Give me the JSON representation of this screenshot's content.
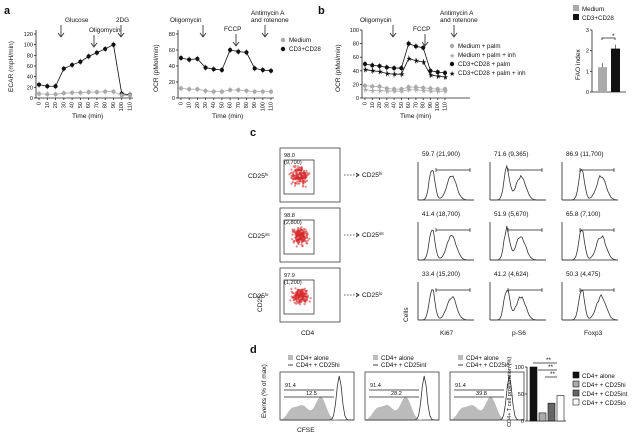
{
  "panels": {
    "a": "a",
    "b": "b",
    "c": "c",
    "d": "d"
  },
  "a_ecar": {
    "ylabel": "ECAR (mpH/min)",
    "xlabel": "Time (min)",
    "yticks": [
      "0",
      "20",
      "40",
      "60",
      "80",
      "100",
      "120"
    ],
    "xticks": [
      "0",
      "10",
      "20",
      "30",
      "40",
      "50",
      "60",
      "70",
      "80",
      "90",
      "100",
      "110"
    ],
    "annotations": [
      "Glucose",
      "Oligomycin",
      "2DG"
    ]
  },
  "a_ocr": {
    "ylabel": "OCR (pMol/min)",
    "xlabel": "Time (min)",
    "yticks": [
      "0",
      "20",
      "40",
      "60",
      "80"
    ],
    "xticks": [
      "0",
      "10",
      "20",
      "30",
      "40",
      "50",
      "60",
      "70",
      "80",
      "90",
      "100",
      "110"
    ],
    "annotations": [
      "Oligomycin",
      "FCCP",
      "Antimycin A",
      "and rotenone"
    ],
    "legend": [
      "Medium",
      "CD3+CD28"
    ]
  },
  "b_ocr": {
    "ylabel": "OCR (pMol/min)",
    "xlabel": "Time (min)",
    "yticks": [
      "0",
      "20",
      "40",
      "60",
      "80",
      "100"
    ],
    "xticks": [
      "0",
      "10",
      "20",
      "30",
      "40",
      "50",
      "60",
      "70",
      "80",
      "90",
      "100",
      "110"
    ],
    "annotations": [
      "Oligomycin",
      "FCCP",
      "Antimycin A",
      "and rotenone"
    ],
    "legend": [
      "Medium + palm",
      "Medium + palm + inh",
      "CD3+CD28 + palm",
      "CD3+CD28 + palm + inh"
    ]
  },
  "b_fao": {
    "ylabel": "FAO index",
    "yticks": [
      "0",
      "1",
      "2",
      "3"
    ],
    "legend": [
      "Medium",
      "CD3+CD28"
    ],
    "sig": "*"
  },
  "c": {
    "row_labels": [
      "CD25hi",
      "CD25int",
      "CD25lo"
    ],
    "row_sup": [
      "hi",
      "int",
      "lo"
    ],
    "scatter_vals": [
      [
        "98.0",
        "(9,700)"
      ],
      [
        "98.8",
        "(2,800)"
      ],
      [
        "97.9",
        "(1,200)"
      ]
    ],
    "xlabel_scatter": "CD4",
    "ylabel_scatter": "CD25",
    "hist_vals": [
      [
        "59.7 (21,900)",
        "71.6 (9,365)",
        "86.9 (11,700)"
      ],
      [
        "41.4 (18,700)",
        "51.9 (5,670)",
        "65.8 (7,100)"
      ],
      [
        "33.4 (15,200)",
        "41.2 (4,624)",
        "50.3 (4,475)"
      ]
    ],
    "hist_xlabels": [
      "Ki67",
      "p-S6",
      "Foxp3"
    ],
    "hist_ylabel": "Cells"
  },
  "d": {
    "ylabel": "Events (% of max)",
    "xlabel": "CFSE",
    "legends": [
      [
        "CD4+ alone",
        "CD4+ + CD25hi"
      ],
      [
        "CD4+ alone",
        "CD4+ + CD25int"
      ],
      [
        "CD4+ alone",
        "CD4+ + CD25lo"
      ]
    ],
    "left_vals": [
      "91.4",
      "91.4",
      "91.4"
    ],
    "right_vals": [
      "12.5",
      "28.2",
      "39.8"
    ],
    "bar_ylabel": "CD4+ T cell proliferation (%)",
    "bar_yticks": [
      "0",
      "50",
      "100"
    ],
    "bar_legend": [
      "CD4+ alone",
      "CD4+ + CD25hi",
      "CD4+ + CD25int",
      "CD4+ + CD25lo"
    ],
    "sig": [
      "**",
      "**",
      "**"
    ]
  },
  "chart_data": [
    {
      "type": "line",
      "title": "",
      "xlabel": "Time (min)",
      "ylabel": "ECAR (mpH/min)",
      "ylim": [
        0,
        120
      ],
      "x": [
        0,
        10,
        20,
        30,
        40,
        50,
        60,
        70,
        80,
        90,
        100,
        110
      ],
      "series": [
        {
          "values": [
            25,
            22,
            22,
            55,
            62,
            68,
            78,
            85,
            92,
            100,
            8,
            6
          ]
        },
        {
          "values": [
            8,
            7,
            7,
            9,
            10,
            10,
            11,
            11,
            12,
            12,
            5,
            5
          ]
        }
      ]
    },
    {
      "type": "line",
      "title": "",
      "xlabel": "Time (min)",
      "ylabel": "OCR (pMol/min)",
      "ylim": [
        0,
        80
      ],
      "x": [
        0,
        10,
        20,
        30,
        40,
        50,
        60,
        70,
        80,
        90,
        100,
        110
      ],
      "series": [
        {
          "name": "Medium",
          "values": [
            12,
            11,
            11,
            9,
            8,
            8,
            10,
            10,
            9,
            8,
            8,
            8
          ]
        },
        {
          "name": "CD3+CD28",
          "values": [
            50,
            48,
            49,
            38,
            36,
            35,
            60,
            58,
            57,
            37,
            35,
            34
          ]
        }
      ]
    },
    {
      "type": "line",
      "title": "",
      "xlabel": "Time (min)",
      "ylabel": "OCR (pMol/min)",
      "ylim": [
        0,
        100
      ],
      "x": [
        0,
        10,
        20,
        30,
        40,
        50,
        60,
        70,
        80,
        90,
        100,
        110
      ],
      "series": [
        {
          "name": "Medium + palm",
          "values": [
            18,
            17,
            17,
            14,
            13,
            13,
            16,
            16,
            15,
            14,
            13,
            13
          ]
        },
        {
          "name": "Medium + palm + inh",
          "values": [
            12,
            11,
            11,
            10,
            10,
            10,
            12,
            12,
            11,
            10,
            10,
            10
          ]
        },
        {
          "name": "CD3+CD28 + palm",
          "values": [
            50,
            48,
            47,
            45,
            44,
            44,
            80,
            76,
            74,
            40,
            38,
            37
          ]
        },
        {
          "name": "CD3+CD28 + palm + inh",
          "values": [
            42,
            40,
            39,
            36,
            35,
            35,
            58,
            55,
            53,
            34,
            32,
            31
          ]
        }
      ]
    },
    {
      "type": "bar",
      "title": "",
      "ylabel": "FAO index",
      "ylim": [
        0,
        3
      ],
      "categories": [
        "Medium",
        "CD3+CD28"
      ],
      "values": [
        1.2,
        2.1
      ]
    },
    {
      "type": "bar",
      "title": "",
      "ylabel": "CD4+ T cell proliferation (%)",
      "ylim": [
        0,
        100
      ],
      "categories": [
        "CD4+ alone",
        "CD4+ + CD25hi",
        "CD4+ + CD25int",
        "CD4+ + CD25lo"
      ],
      "values": [
        100,
        15,
        33,
        47
      ]
    }
  ]
}
